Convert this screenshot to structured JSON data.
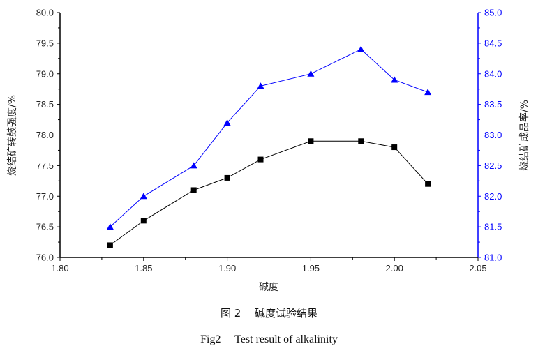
{
  "chart_data": {
    "type": "line",
    "title": "",
    "xlabel": "碱度",
    "ylabel_left": "烧结矿转鼓强度/%",
    "ylabel_right": "烧结矿成品率/%",
    "xlim": [
      1.8,
      2.05
    ],
    "ylim_left": [
      76.0,
      80.0
    ],
    "ylim_right": [
      81.0,
      85.0
    ],
    "x_ticks": [
      "1.80",
      "1.85",
      "1.90",
      "1.95",
      "2.00",
      "2.05"
    ],
    "y_left_ticks": [
      "76.0",
      "76.5",
      "77.0",
      "77.5",
      "78.0",
      "78.5",
      "79.0",
      "79.5",
      "80.0"
    ],
    "y_right_ticks": [
      "81.0",
      "81.5",
      "82.0",
      "82.5",
      "83.0",
      "83.5",
      "84.0",
      "84.5",
      "85.0"
    ],
    "grid": false,
    "series": [
      {
        "axis": "left",
        "color": "#000000",
        "marker": "square",
        "x": [
          1.83,
          1.85,
          1.88,
          1.9,
          1.92,
          1.95,
          1.98,
          2.0,
          2.02
        ],
        "values": [
          76.2,
          76.6,
          77.1,
          77.3,
          77.6,
          77.9,
          77.9,
          77.8,
          77.2
        ]
      },
      {
        "axis": "right",
        "color": "#0000ff",
        "marker": "triangle",
        "x": [
          1.83,
          1.85,
          1.88,
          1.9,
          1.92,
          1.95,
          1.98,
          2.0,
          2.02
        ],
        "values": [
          81.5,
          82.0,
          82.5,
          83.2,
          83.8,
          84.0,
          84.4,
          83.9,
          83.7
        ]
      }
    ],
    "right_axis_color": "#0000ff"
  },
  "caption": {
    "chinese": "图 2　 碱度试验结果",
    "english": "Fig2　 Test result of alkalinity"
  }
}
